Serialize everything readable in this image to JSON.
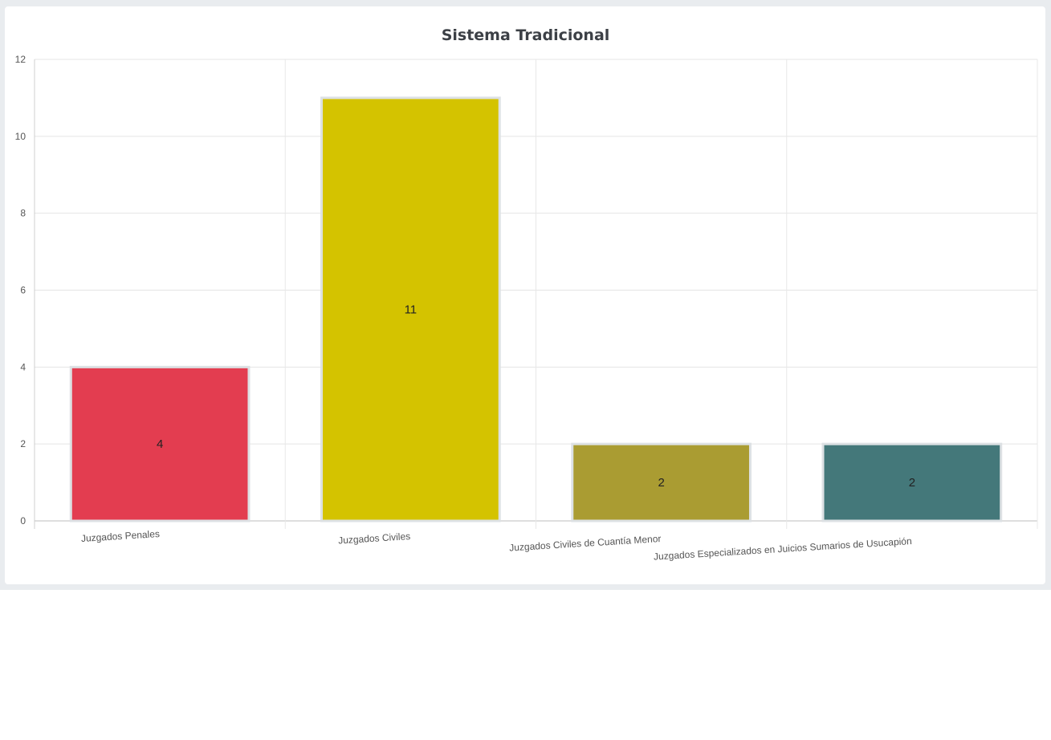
{
  "chart_data": {
    "type": "bar",
    "title": "Sistema Tradicional",
    "categories": [
      "Juzgados Penales",
      "Juzgados Civiles",
      "Juzgados Civiles de Cuantía Menor",
      "Juzgados Especializados en Juicios Sumarios de Usucapión"
    ],
    "values": [
      4,
      11,
      2,
      2
    ],
    "colors": [
      "#e33d50",
      "#d4c300",
      "#aa9c32",
      "#44787a"
    ],
    "bar_border_color": "#dde1e4",
    "ylim": [
      0,
      12
    ],
    "yticks": [
      "0",
      "2",
      "4",
      "6",
      "8",
      "10",
      "12"
    ],
    "grid": true,
    "data_labels": [
      "4",
      "11",
      "2",
      "2"
    ],
    "legend": "none"
  }
}
